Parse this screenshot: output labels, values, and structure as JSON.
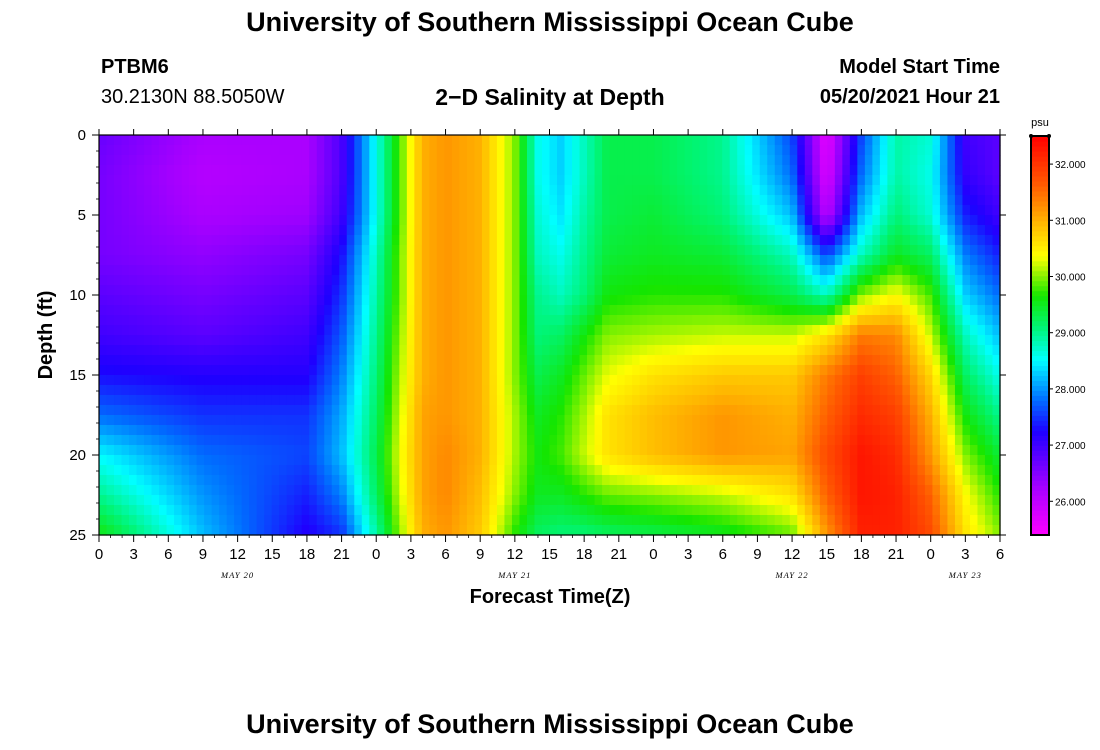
{
  "title": "University of Southern Mississippi Ocean Cube",
  "footer_title": "University of Southern Mississippi Ocean Cube",
  "station": {
    "name": "PTBM6",
    "location": "30.2130N  88.5050W"
  },
  "model": {
    "label": "Model Start Time",
    "start": "05/20/2021 Hour 21"
  },
  "chart_data": {
    "type": "heatmap",
    "title": "2−D Salinity at Depth",
    "xlabel": "Forecast Time(Z)",
    "ylabel": "Depth (ft)",
    "x_tick_labels": [
      "0",
      "3",
      "6",
      "9",
      "12",
      "15",
      "18",
      "21",
      "0",
      "3",
      "6",
      "9",
      "12",
      "15",
      "18",
      "21",
      "0",
      "3",
      "6",
      "9",
      "12",
      "15",
      "18",
      "21",
      "0",
      "3",
      "6"
    ],
    "x_range_hours_from_may20_00z": [
      0,
      78
    ],
    "date_labels": [
      {
        "text": "MAY 20",
        "hour": 12
      },
      {
        "text": "MAY 21",
        "hour": 36
      },
      {
        "text": "MAY 22",
        "hour": 60
      },
      {
        "text": "MAY 23",
        "hour": 75
      }
    ],
    "y_ticks": [
      0,
      5,
      10,
      15,
      20,
      25
    ],
    "y_range_ft": [
      0,
      25
    ],
    "y_inverted": true,
    "colorbar": {
      "unit": "psu",
      "ticks": [
        "26.000",
        "27.000",
        "28.000",
        "29.000",
        "30.000",
        "31.000",
        "32.000"
      ],
      "range": [
        25.4,
        32.5
      ]
    },
    "depth_ft": [
      0,
      2.5,
      5,
      7.5,
      10,
      12.5,
      15,
      17.5,
      20,
      22.5,
      25
    ],
    "time_hours": [
      0,
      9,
      18,
      21,
      24,
      26,
      28,
      30,
      33,
      36,
      38,
      40,
      42,
      44,
      48,
      54,
      60,
      63,
      66,
      69,
      72,
      75,
      78
    ],
    "salinity_psu": [
      [
        26.7,
        26.2,
        26.2,
        26.9,
        28.6,
        29.8,
        31.0,
        31.2,
        31.0,
        30.0,
        28.6,
        28.3,
        28.8,
        29.3,
        29.3,
        29.0,
        27.6,
        25.6,
        27.6,
        28.9,
        28.7,
        27.0,
        26.8
      ],
      [
        26.6,
        26.1,
        26.2,
        26.9,
        28.6,
        29.8,
        31.0,
        31.2,
        31.0,
        30.0,
        28.6,
        28.3,
        28.8,
        29.3,
        29.3,
        29.0,
        27.8,
        25.7,
        27.8,
        28.9,
        28.6,
        27.1,
        26.8
      ],
      [
        26.6,
        26.2,
        26.3,
        27.0,
        28.6,
        29.8,
        31.0,
        31.2,
        31.0,
        30.0,
        28.7,
        28.4,
        28.9,
        29.3,
        29.4,
        29.1,
        28.2,
        26.0,
        28.2,
        29.1,
        28.7,
        27.4,
        27.0
      ],
      [
        26.6,
        26.4,
        26.6,
        27.3,
        28.8,
        29.9,
        31.0,
        31.2,
        31.0,
        30.0,
        28.8,
        28.6,
        29.0,
        29.4,
        29.5,
        29.4,
        28.8,
        27.6,
        28.8,
        29.5,
        29.2,
        27.9,
        27.4
      ],
      [
        26.8,
        26.6,
        26.8,
        27.5,
        28.9,
        29.9,
        31.0,
        31.2,
        31.0,
        30.0,
        29.0,
        28.8,
        29.1,
        29.6,
        29.7,
        29.7,
        29.3,
        28.8,
        30.0,
        30.4,
        29.8,
        28.3,
        27.8
      ],
      [
        27.0,
        26.8,
        27.0,
        27.7,
        29.0,
        30.0,
        31.0,
        31.2,
        31.0,
        30.0,
        29.1,
        29.2,
        29.6,
        30.0,
        30.1,
        30.2,
        30.2,
        30.6,
        31.4,
        31.3,
        30.2,
        28.8,
        28.2
      ],
      [
        27.3,
        27.2,
        27.2,
        27.9,
        29.1,
        30.1,
        31.0,
        31.2,
        31.0,
        30.0,
        29.3,
        29.5,
        29.9,
        30.3,
        30.6,
        30.8,
        30.8,
        31.4,
        31.9,
        31.6,
        30.7,
        29.2,
        28.6
      ],
      [
        27.8,
        27.5,
        27.5,
        28.1,
        29.2,
        30.2,
        31.1,
        31.2,
        31.0,
        30.1,
        29.5,
        29.7,
        30.1,
        30.6,
        30.9,
        31.2,
        31.0,
        31.6,
        32.1,
        31.9,
        31.0,
        29.6,
        29.0
      ],
      [
        28.5,
        27.8,
        27.6,
        28.2,
        29.3,
        30.3,
        31.1,
        31.3,
        31.0,
        30.1,
        29.6,
        29.8,
        30.2,
        30.6,
        30.9,
        31.2,
        31.1,
        31.8,
        32.3,
        32.1,
        31.2,
        30.0,
        29.4
      ],
      [
        29.0,
        28.0,
        27.4,
        27.9,
        29.2,
        30.2,
        31.1,
        31.3,
        30.9,
        30.0,
        29.5,
        29.5,
        29.7,
        29.9,
        30.0,
        30.2,
        30.6,
        31.6,
        32.3,
        32.2,
        31.6,
        30.4,
        29.7
      ],
      [
        29.6,
        28.2,
        27.2,
        27.5,
        28.9,
        30.0,
        31.0,
        31.2,
        30.8,
        29.7,
        29.2,
        29.1,
        29.1,
        29.2,
        29.3,
        29.5,
        29.9,
        31.2,
        32.2,
        32.2,
        31.8,
        30.6,
        30.0
      ]
    ]
  }
}
